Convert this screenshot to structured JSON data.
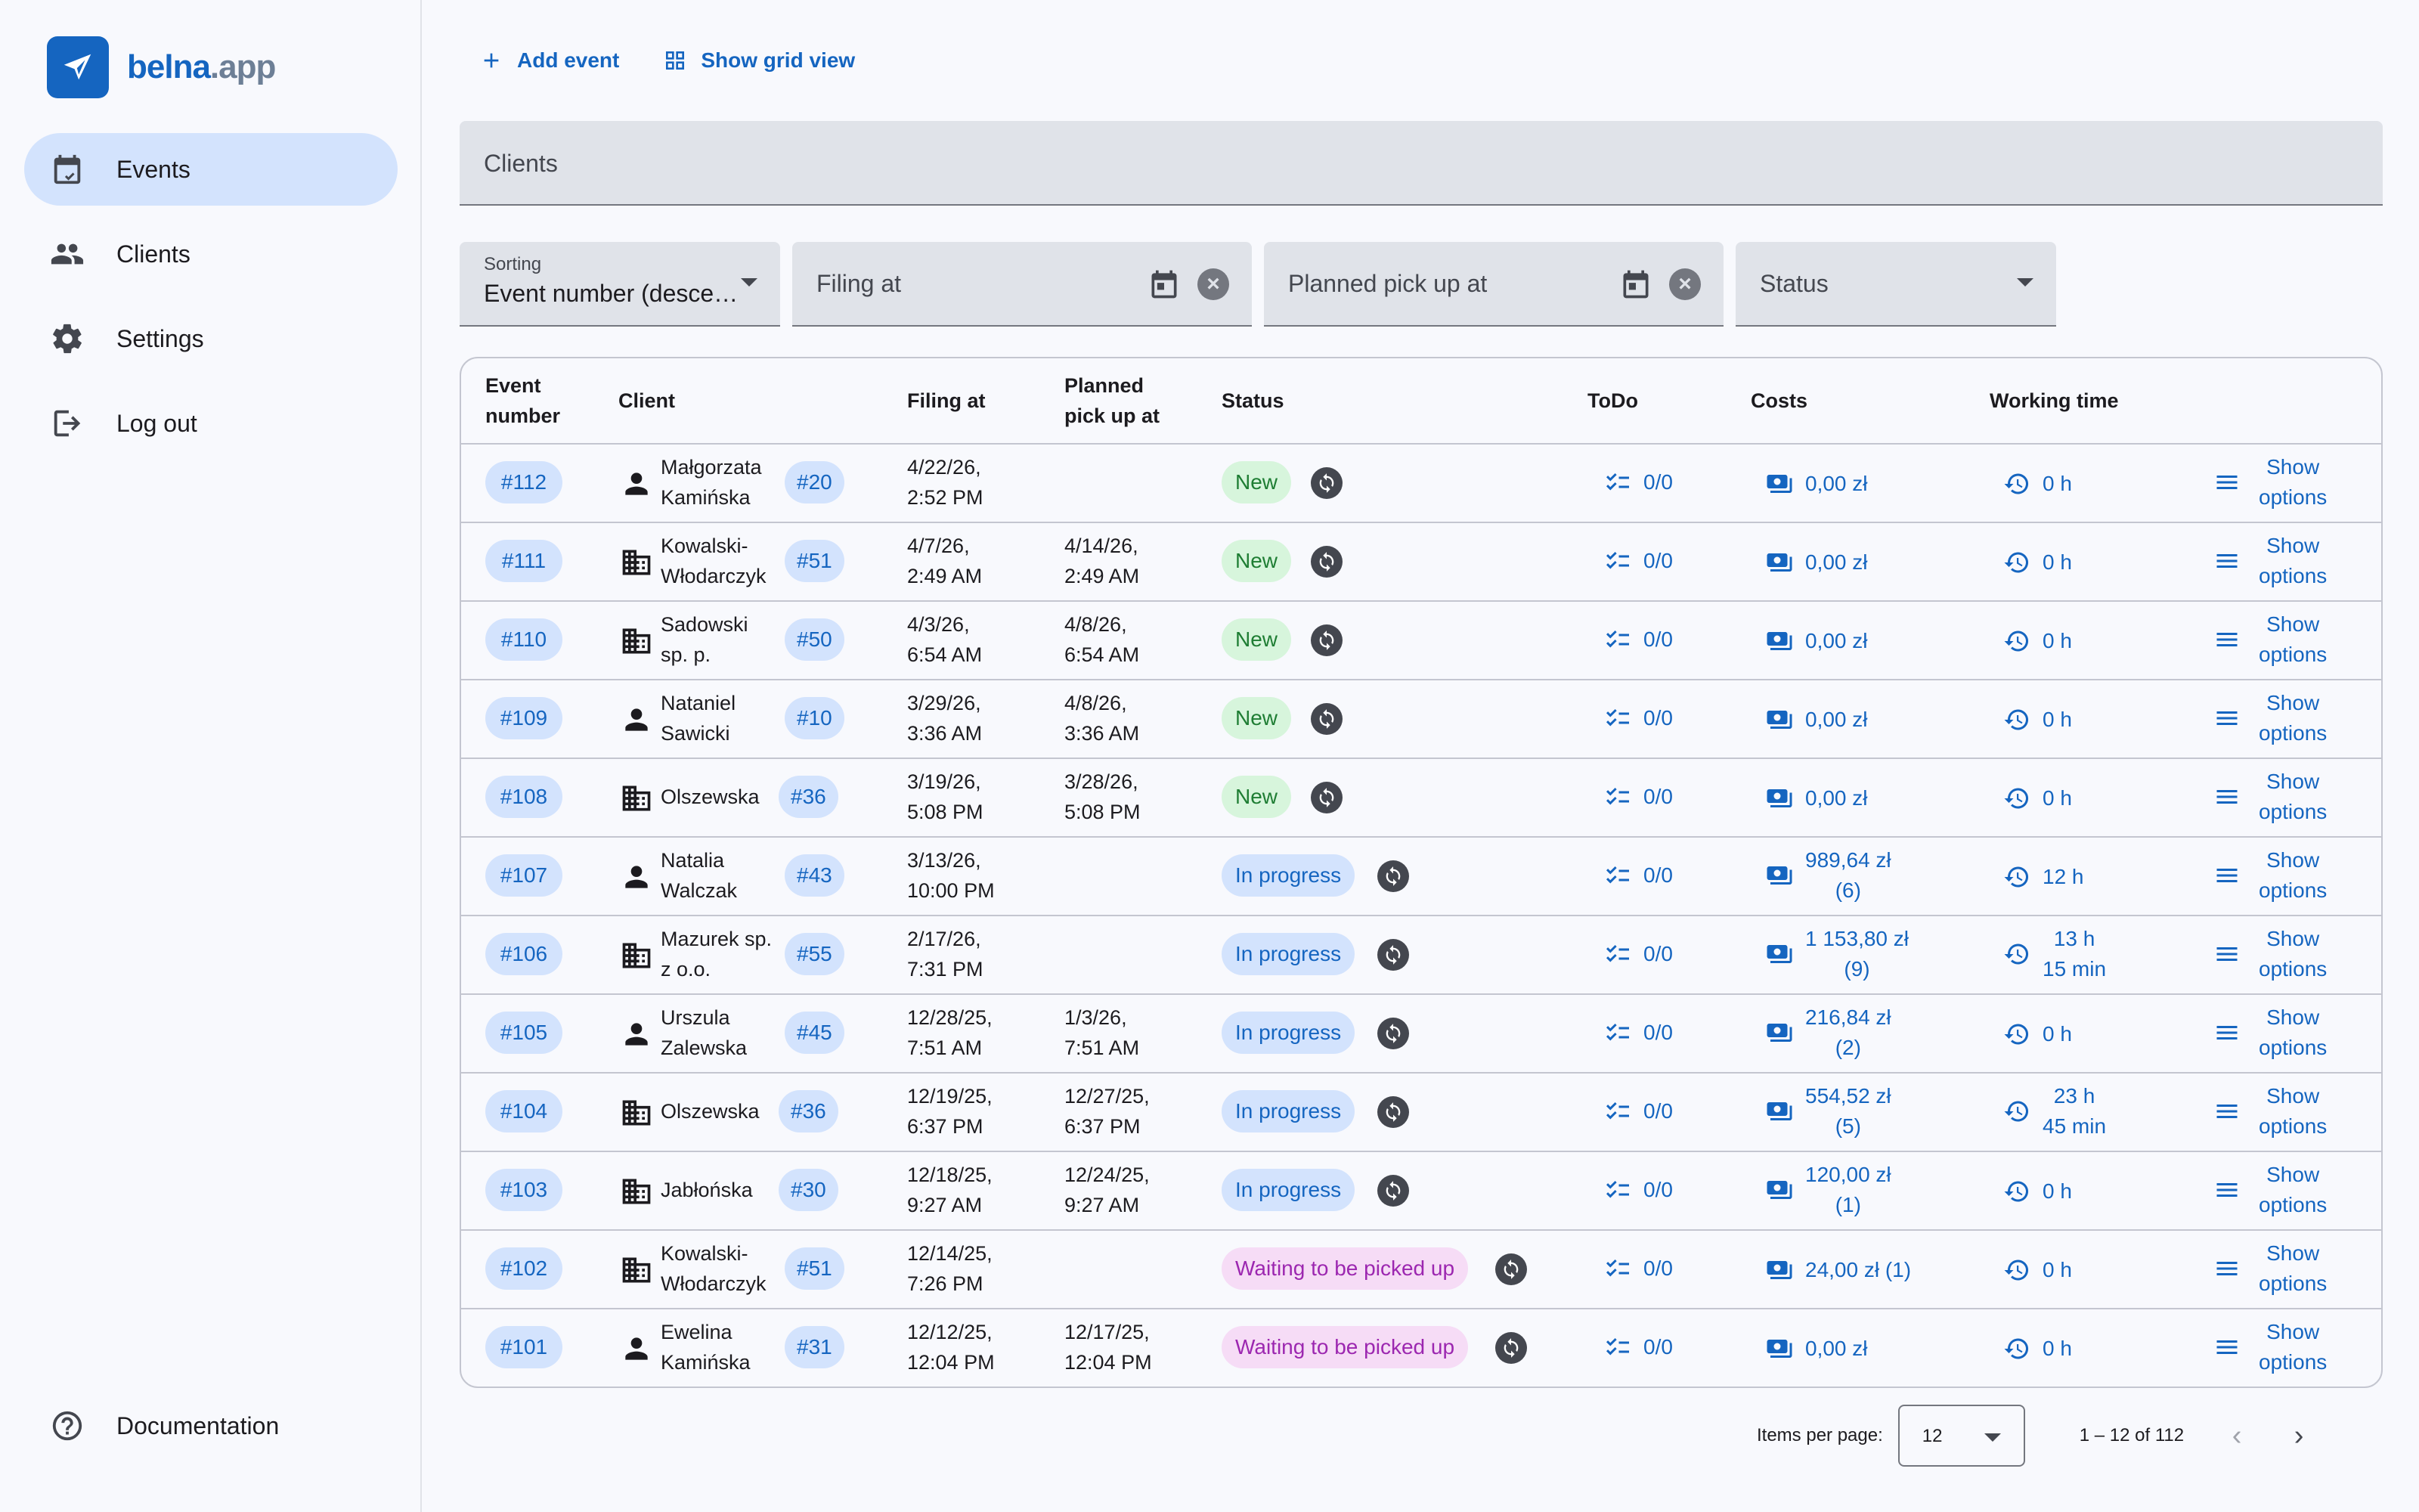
{
  "app": {
    "name_main": "belna",
    "name_suffix": ".app"
  },
  "nav": {
    "items": [
      {
        "label": "Events"
      },
      {
        "label": "Clients"
      },
      {
        "label": "Settings"
      },
      {
        "label": "Log out"
      }
    ],
    "documentation": "Documentation"
  },
  "toolbar": {
    "add_event": "Add event",
    "grid_view": "Show grid view"
  },
  "filters": {
    "clients_placeholder": "Clients",
    "sorting_label": "Sorting",
    "sorting_value": "Event number (desce…",
    "filing_placeholder": "Filing at",
    "pickup_placeholder": "Planned pick up at",
    "status_placeholder": "Status"
  },
  "table": {
    "headers": {
      "event_l1": "Event",
      "event_l2": "number",
      "client": "Client",
      "filing": "Filing at",
      "pickup_l1": "Planned",
      "pickup_l2": "pick up at",
      "status": "Status",
      "todo": "ToDo",
      "costs": "Costs",
      "working": "Working time"
    },
    "rows": [
      {
        "num": "#112",
        "ctype": "person",
        "c1": "Małgorzata",
        "c2": "Kamińska",
        "cnum": "#20",
        "f1": "4/22/26,",
        "f2": "2:52 PM",
        "p1": "",
        "p2": "",
        "status": "New",
        "sclass": "new",
        "todo": "0/0",
        "cost1": "0,00 zł",
        "cost2": "",
        "wt1": "0 h",
        "wt2": "",
        "opt1": "Show",
        "opt2": "options"
      },
      {
        "num": "#111",
        "ctype": "company",
        "c1": "Kowalski-",
        "c2": "Włodarczyk",
        "cnum": "#51",
        "f1": "4/7/26,",
        "f2": "2:49 AM",
        "p1": "4/14/26,",
        "p2": "2:49 AM",
        "status": "New",
        "sclass": "new",
        "todo": "0/0",
        "cost1": "0,00 zł",
        "cost2": "",
        "wt1": "0 h",
        "wt2": "",
        "opt1": "Show",
        "opt2": "options"
      },
      {
        "num": "#110",
        "ctype": "company",
        "c1": "Sadowski",
        "c2": "sp. p.",
        "cnum": "#50",
        "f1": "4/3/26,",
        "f2": "6:54 AM",
        "p1": "4/8/26,",
        "p2": "6:54 AM",
        "status": "New",
        "sclass": "new",
        "todo": "0/0",
        "cost1": "0,00 zł",
        "cost2": "",
        "wt1": "0 h",
        "wt2": "",
        "opt1": "Show",
        "opt2": "options"
      },
      {
        "num": "#109",
        "ctype": "person",
        "c1": "Nataniel",
        "c2": "Sawicki",
        "cnum": "#10",
        "f1": "3/29/26,",
        "f2": "3:36 AM",
        "p1": "4/8/26,",
        "p2": "3:36 AM",
        "status": "New",
        "sclass": "new",
        "todo": "0/0",
        "cost1": "0,00 zł",
        "cost2": "",
        "wt1": "0 h",
        "wt2": "",
        "opt1": "Show",
        "opt2": "options"
      },
      {
        "num": "#108",
        "ctype": "company",
        "c1": "Olszewska",
        "c2": "",
        "cnum": "#36",
        "f1": "3/19/26,",
        "f2": "5:08 PM",
        "p1": "3/28/26,",
        "p2": "5:08 PM",
        "status": "New",
        "sclass": "new",
        "todo": "0/0",
        "cost1": "0,00 zł",
        "cost2": "",
        "wt1": "0 h",
        "wt2": "",
        "opt1": "Show",
        "opt2": "options"
      },
      {
        "num": "#107",
        "ctype": "person",
        "c1": "Natalia",
        "c2": "Walczak",
        "cnum": "#43",
        "f1": "3/13/26,",
        "f2": "10:00 PM",
        "p1": "",
        "p2": "",
        "status": "In progress",
        "sclass": "prog",
        "todo": "0/0",
        "cost1": "989,64 zł",
        "cost2": "(6)",
        "wt1": "12 h",
        "wt2": "",
        "opt1": "Show",
        "opt2": "options"
      },
      {
        "num": "#106",
        "ctype": "company",
        "c1": "Mazurek sp.",
        "c2": "z o.o.",
        "cnum": "#55",
        "f1": "2/17/26,",
        "f2": "7:31 PM",
        "p1": "",
        "p2": "",
        "status": "In progress",
        "sclass": "prog",
        "todo": "0/0",
        "cost1": "1 153,80 zł",
        "cost2": "(9)",
        "wt1": "13 h",
        "wt2": "15 min",
        "opt1": "Show",
        "opt2": "options"
      },
      {
        "num": "#105",
        "ctype": "person",
        "c1": "Urszula",
        "c2": "Zalewska",
        "cnum": "#45",
        "f1": "12/28/25,",
        "f2": "7:51 AM",
        "p1": "1/3/26,",
        "p2": "7:51 AM",
        "status": "In progress",
        "sclass": "prog",
        "todo": "0/0",
        "cost1": "216,84 zł",
        "cost2": "(2)",
        "wt1": "0 h",
        "wt2": "",
        "opt1": "Show",
        "opt2": "options"
      },
      {
        "num": "#104",
        "ctype": "company",
        "c1": "Olszewska",
        "c2": "",
        "cnum": "#36",
        "f1": "12/19/25,",
        "f2": "6:37 PM",
        "p1": "12/27/25,",
        "p2": "6:37 PM",
        "status": "In progress",
        "sclass": "prog",
        "todo": "0/0",
        "cost1": "554,52 zł",
        "cost2": "(5)",
        "wt1": "23 h",
        "wt2": "45 min",
        "opt1": "Show",
        "opt2": "options"
      },
      {
        "num": "#103",
        "ctype": "company",
        "c1": "Jabłońska",
        "c2": "",
        "cnum": "#30",
        "f1": "12/18/25,",
        "f2": "9:27 AM",
        "p1": "12/24/25,",
        "p2": "9:27 AM",
        "status": "In progress",
        "sclass": "prog",
        "todo": "0/0",
        "cost1": "120,00 zł",
        "cost2": "(1)",
        "wt1": "0 h",
        "wt2": "",
        "opt1": "Show",
        "opt2": "options"
      },
      {
        "num": "#102",
        "ctype": "company",
        "c1": "Kowalski-",
        "c2": "Włodarczyk",
        "cnum": "#51",
        "f1": "12/14/25,",
        "f2": "7:26 PM",
        "p1": "",
        "p2": "",
        "status": "Waiting to be picked up",
        "sclass": "wait",
        "todo": "0/0",
        "cost1": "24,00 zł (1)",
        "cost2": "",
        "wt1": "0 h",
        "wt2": "",
        "opt1": "Show",
        "opt2": "options"
      },
      {
        "num": "#101",
        "ctype": "person",
        "c1": "Ewelina",
        "c2": "Kamińska",
        "cnum": "#31",
        "f1": "12/12/25,",
        "f2": "12:04 PM",
        "p1": "12/17/25,",
        "p2": "12:04 PM",
        "status": "Waiting to be picked up",
        "sclass": "wait",
        "todo": "0/0",
        "cost1": "0,00 zł",
        "cost2": "",
        "wt1": "0 h",
        "wt2": "",
        "opt1": "Show",
        "opt2": "options"
      }
    ]
  },
  "pagination": {
    "label": "Items per page:",
    "per_page": "12",
    "range": "1 – 12 of 112"
  },
  "colors": {
    "accent": "#1565c0",
    "nav_active": "#d3e3fd",
    "status_new_bg": "#d7f5dc",
    "status_progress_bg": "#d3e3fd",
    "status_waiting_bg": "#f6dcf6"
  }
}
